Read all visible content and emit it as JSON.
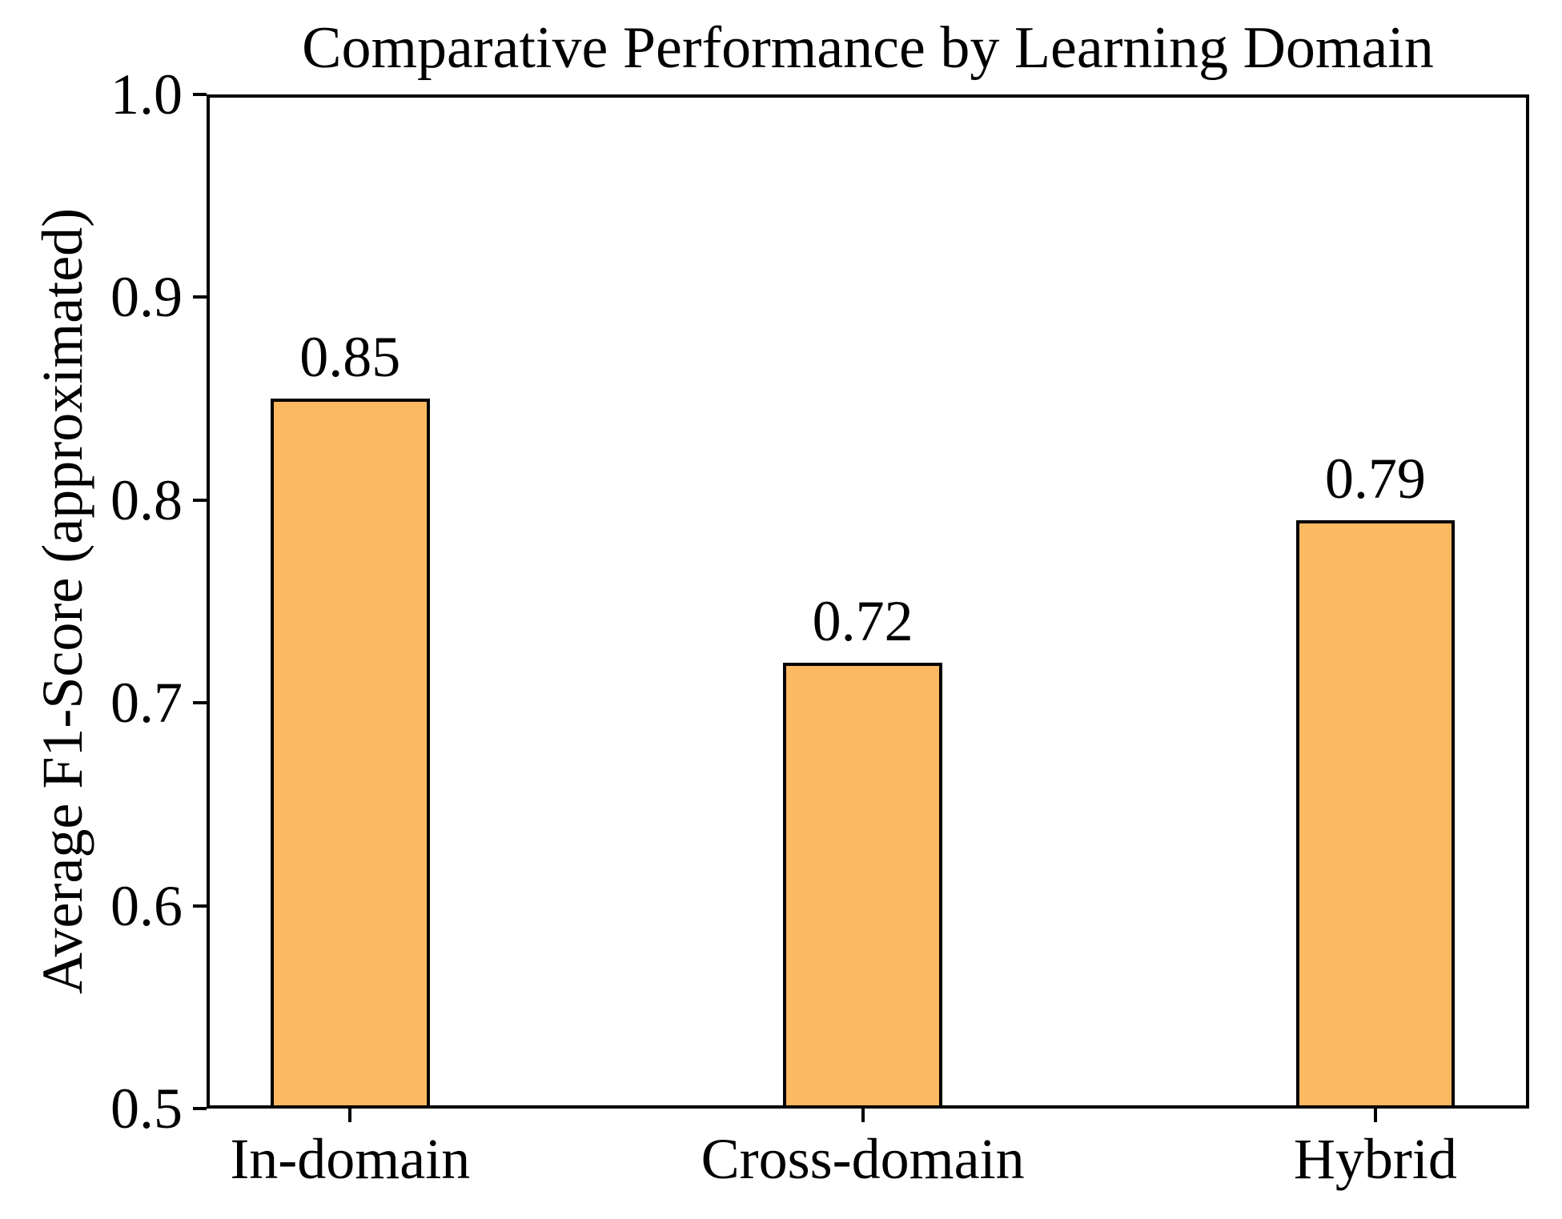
{
  "chart_data": {
    "type": "bar",
    "title": "Comparative Performance by Learning Domain",
    "xlabel": "",
    "ylabel": "Average F1-Score (approximated)",
    "categories": [
      "In-domain",
      "Cross-domain",
      "Hybrid"
    ],
    "values": [
      0.85,
      0.72,
      0.79
    ],
    "value_labels": [
      "0.85",
      "0.72",
      "0.79"
    ],
    "ylim": [
      0.5,
      1.0
    ],
    "yticks": [
      0.5,
      0.6,
      0.7,
      0.8,
      0.9,
      1.0
    ],
    "ytick_labels": [
      "0.5",
      "0.6",
      "0.7",
      "0.8",
      "0.9",
      "1.0"
    ],
    "xlim": [
      -0.28,
      2.3
    ],
    "bar_width_data_units": 0.31,
    "bar_fill_color": "#FDB961",
    "bar_edge_color": "#000000",
    "grid": false,
    "legend": "none"
  }
}
